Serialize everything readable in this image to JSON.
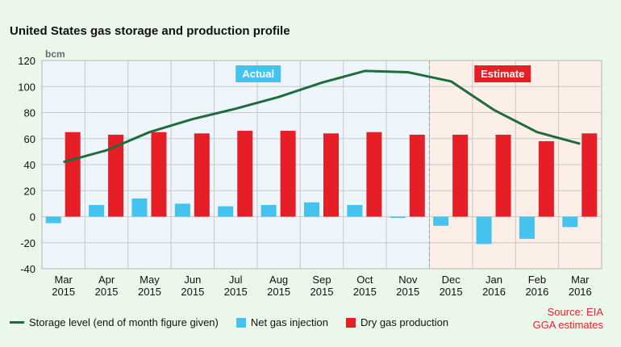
{
  "colors": {
    "storage": "#1e6b3c",
    "injection": "#44c3ee",
    "production": "#e61f27",
    "actual_bg": "#eef6fb",
    "estimate_bg": "#fcefe8",
    "grid": "#c8c8c8"
  },
  "legend": {
    "storage": "Storage level (end of month figure given)",
    "injection": "Net gas injection",
    "production": "Dry gas production"
  },
  "source": {
    "line1": "Source: EIA",
    "line2": "GGA estimates"
  },
  "chart_data": {
    "type": "bar",
    "title": "United States gas storage and production profile",
    "ylabel": "bcm",
    "ylim": [
      -40,
      120
    ],
    "yticks": [
      -40,
      -20,
      0,
      20,
      40,
      60,
      80,
      100,
      120
    ],
    "grid": true,
    "legend_position": "bottom",
    "categories": [
      {
        "month": "Mar",
        "year": "2015"
      },
      {
        "month": "Apr",
        "year": "2015"
      },
      {
        "month": "May",
        "year": "2015"
      },
      {
        "month": "Jun",
        "year": "2015"
      },
      {
        "month": "Jul",
        "year": "2015"
      },
      {
        "month": "Aug",
        "year": "2015"
      },
      {
        "month": "Sep",
        "year": "2015"
      },
      {
        "month": "Oct",
        "year": "2015"
      },
      {
        "month": "Nov",
        "year": "2015"
      },
      {
        "month": "Dec",
        "year": "2015"
      },
      {
        "month": "Jan",
        "year": "2016"
      },
      {
        "month": "Feb",
        "year": "2016"
      },
      {
        "month": "Mar",
        "year": "2016"
      }
    ],
    "regions": [
      {
        "label": "Actual",
        "start": 0,
        "end": 8
      },
      {
        "label": "Estimate",
        "start": 9,
        "end": 12
      }
    ],
    "series": [
      {
        "name": "Storage level (end of month figure given)",
        "type": "line",
        "values": [
          42,
          51,
          65,
          75,
          83,
          92,
          103,
          112,
          111,
          104,
          82,
          65,
          56
        ]
      },
      {
        "name": "Net gas injection",
        "type": "bar",
        "values": [
          -5,
          9,
          14,
          10,
          8,
          9,
          11,
          9,
          -1,
          -7,
          -21,
          -17,
          -8
        ]
      },
      {
        "name": "Dry gas production",
        "type": "bar",
        "values": [
          65,
          63,
          65,
          64,
          66,
          66,
          64,
          65,
          63,
          63,
          63,
          58,
          64
        ]
      }
    ]
  }
}
